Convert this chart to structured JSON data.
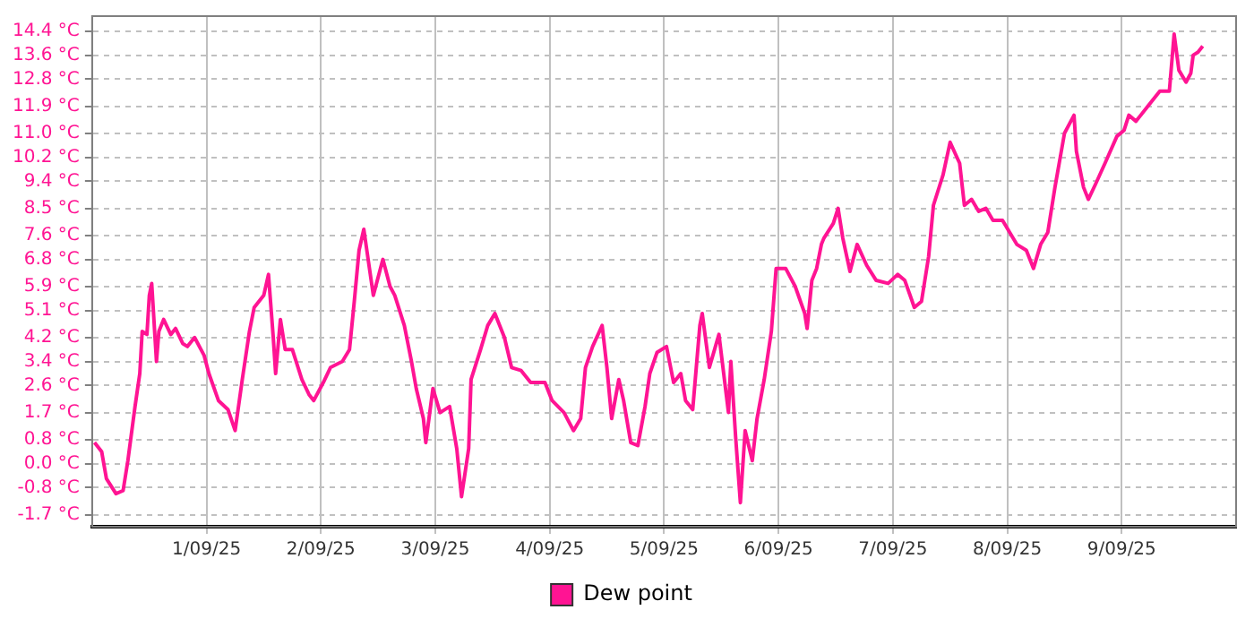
{
  "chart_data": {
    "type": "line",
    "legend": "bottom",
    "grid": true,
    "marker": "none",
    "line_style": "solid",
    "xlim": [
      "--08-31",
      "--09-10"
    ],
    "xticks": [
      {
        "value": "--09-01",
        "label": "1/09/25"
      },
      {
        "value": "--09-02",
        "label": "2/09/25"
      },
      {
        "value": "--09-03",
        "label": "3/09/25"
      },
      {
        "value": "--09-04",
        "label": "4/09/25"
      },
      {
        "value": "--09-05",
        "label": "5/09/25"
      },
      {
        "value": "--09-06",
        "label": "6/09/25"
      },
      {
        "value": "--09-07",
        "label": "7/09/25"
      },
      {
        "value": "--09-08",
        "label": "8/09/25"
      },
      {
        "value": "--09-09",
        "label": "9/09/25"
      }
    ],
    "ylim": [
      -2.1,
      14.9
    ],
    "yticks": [
      {
        "value": -1.7,
        "label": "-1.7 °C"
      },
      {
        "value": -0.8,
        "label": "-0.8 °C"
      },
      {
        "value": 0.0,
        "label": "0.0 °C"
      },
      {
        "value": 0.8,
        "label": "0.8 °C"
      },
      {
        "value": 1.7,
        "label": "1.7 °C"
      },
      {
        "value": 2.6,
        "label": "2.6 °C"
      },
      {
        "value": 3.4,
        "label": "3.4 °C"
      },
      {
        "value": 4.2,
        "label": "4.2 °C"
      },
      {
        "value": 5.1,
        "label": "5.1 °C"
      },
      {
        "value": 5.9,
        "label": "5.9 °C"
      },
      {
        "value": 6.8,
        "label": "6.8 °C"
      },
      {
        "value": 7.6,
        "label": "7.6 °C"
      },
      {
        "value": 8.5,
        "label": "8.5 °C"
      },
      {
        "value": 9.4,
        "label": "9.4 °C"
      },
      {
        "value": 10.2,
        "label": "10.2 °C"
      },
      {
        "value": 11.0,
        "label": "11.0 °C"
      },
      {
        "value": 11.9,
        "label": "11.9 °C"
      },
      {
        "value": 12.8,
        "label": "12.8 °C"
      },
      {
        "value": 13.6,
        "label": "13.6 °C"
      },
      {
        "value": 14.4,
        "label": "14.4 °C"
      }
    ],
    "x": [
      "--08-31T00:30",
      "--08-31T02:00",
      "--08-31T03:00",
      "--08-31T05:00",
      "--08-31T06:30",
      "--08-31T07:30",
      "--08-31T09:00",
      "--08-31T10:00",
      "--08-31T10:30",
      "--08-31T11:30",
      "--08-31T12:00",
      "--08-31T12:30",
      "--08-31T13:30",
      "--08-31T14:00",
      "--08-31T15:00",
      "--08-31T16:30",
      "--08-31T17:30",
      "--08-31T19:00",
      "--08-31T20:00",
      "--08-31T21:30",
      "--08-31T23:30",
      "--09-01T00:30",
      "--09-01T02:30",
      "--09-01T04:30",
      "--09-01T06:00",
      "--09-01T07:30",
      "--09-01T09:00",
      "--09-01T10:00",
      "--09-01T12:00",
      "--09-01T13:00",
      "--09-01T14:00",
      "--09-01T14:30",
      "--09-01T15:30",
      "--09-01T16:30",
      "--09-01T18:00",
      "--09-01T20:00",
      "--09-01T21:30",
      "--09-01T22:30",
      "--09-02T00:30",
      "--09-02T02:00",
      "--09-02T04:30",
      "--09-02T06:00",
      "--09-02T07:00",
      "--09-02T08:00",
      "--09-02T09:00",
      "--09-02T10:00",
      "--09-02T11:00",
      "--09-02T13:00",
      "--09-02T14:30",
      "--09-02T15:30",
      "--09-02T17:30",
      "--09-02T19:00",
      "--09-02T20:00",
      "--09-02T21:30",
      "--09-02T22:00",
      "--09-02T23:30",
      "--09-03T01:00",
      "--09-03T03:00",
      "--09-03T04:30",
      "--09-03T05:30",
      "--09-03T07:00",
      "--09-03T07:30",
      "--09-03T09:30",
      "--09-03T11:00",
      "--09-03T12:30",
      "--09-03T14:30",
      "--09-03T16:00",
      "--09-03T18:00",
      "--09-03T20:00",
      "--09-03T23:00",
      "--09-04T00:30",
      "--09-04T03:00",
      "--09-04T05:00",
      "--09-04T06:30",
      "--09-04T07:30",
      "--09-04T09:00",
      "--09-04T11:00",
      "--09-04T12:00",
      "--09-04T13:00",
      "--09-04T14:30",
      "--09-04T15:30",
      "--09-04T17:00",
      "--09-04T18:30",
      "--09-04T20:00",
      "--09-04T21:00",
      "--09-04T22:30",
      "--09-05T00:30",
      "--09-05T02:00",
      "--09-05T03:30",
      "--09-05T04:30",
      "--09-05T06:00",
      "--09-05T07:30",
      "--09-05T08:00",
      "--09-05T09:30",
      "--09-05T11:30",
      "--09-05T13:30",
      "--09-05T14:00",
      "--09-05T15:00",
      "--09-05T16:00",
      "--09-05T17:00",
      "--09-05T18:30",
      "--09-05T19:30",
      "--09-05T21:00",
      "--09-05T22:30",
      "--09-05T23:30",
      "--09-06T01:30",
      "--09-06T03:30",
      "--09-06T05:30",
      "--09-06T06:00",
      "--09-06T07:00",
      "--09-06T08:00",
      "--09-06T09:00",
      "--09-06T09:30",
      "--09-06T11:30",
      "--09-06T12:30",
      "--09-06T13:30",
      "--09-06T15:00",
      "--09-06T16:30",
      "--09-06T18:30",
      "--09-06T20:30",
      "--09-06T23:00",
      "--09-07T01:00",
      "--09-07T02:30",
      "--09-07T04:30",
      "--09-07T06:00",
      "--09-07T07:30",
      "--09-07T08:30",
      "--09-07T10:30",
      "--09-07T12:00",
      "--09-07T14:00",
      "--09-07T15:00",
      "--09-07T16:30",
      "--09-07T18:00",
      "--09-07T19:30",
      "--09-07T21:00",
      "--09-07T23:00",
      "--09-08T00:30",
      "--09-08T02:00",
      "--09-08T04:00",
      "--09-08T05:30",
      "--09-08T07:00",
      "--09-08T08:30",
      "--09-08T10:00",
      "--09-08T12:00",
      "--09-08T14:00",
      "--09-08T14:30",
      "--09-08T16:00",
      "--09-08T17:00",
      "--09-08T18:30",
      "--09-08T20:30",
      "--09-08T23:00",
      "--09-09T00:30",
      "--09-09T01:30",
      "--09-09T03:00",
      "--09-09T05:30",
      "--09-09T08:00",
      "--09-09T10:00",
      "--09-09T11:00",
      "--09-09T12:00",
      "--09-09T13:30",
      "--09-09T14:30",
      "--09-09T15:00",
      "--09-09T16:00",
      "--09-09T17:00"
    ],
    "series": [
      {
        "name": "Dew point",
        "color": "#ff1493",
        "values": [
          0.7,
          0.4,
          -0.5,
          -1.0,
          -0.9,
          0.1,
          1.9,
          3.0,
          4.4,
          4.3,
          5.6,
          6.0,
          3.4,
          4.4,
          4.8,
          4.3,
          4.5,
          4.0,
          3.9,
          4.2,
          3.6,
          3.0,
          2.1,
          1.8,
          1.1,
          2.8,
          4.4,
          5.2,
          5.6,
          6.3,
          4.2,
          3.0,
          4.8,
          3.8,
          3.8,
          2.8,
          2.3,
          2.1,
          2.7,
          3.2,
          3.4,
          3.8,
          5.4,
          7.1,
          7.8,
          6.7,
          5.6,
          6.8,
          5.9,
          5.6,
          4.6,
          3.4,
          2.5,
          1.5,
          0.7,
          2.5,
          1.7,
          1.9,
          0.5,
          -1.1,
          0.5,
          2.8,
          3.8,
          4.6,
          5.0,
          4.2,
          3.2,
          3.1,
          2.7,
          2.7,
          2.1,
          1.7,
          1.1,
          1.5,
          3.2,
          3.9,
          4.6,
          3.2,
          1.5,
          2.8,
          2.1,
          0.7,
          0.6,
          1.9,
          3.0,
          3.7,
          3.9,
          2.7,
          3.0,
          2.1,
          1.8,
          4.6,
          5.0,
          3.2,
          4.3,
          1.7,
          3.4,
          0.9,
          -1.3,
          1.1,
          0.1,
          1.5,
          2.8,
          4.4,
          6.5,
          6.5,
          5.9,
          5.0,
          4.5,
          6.1,
          6.5,
          7.3,
          7.5,
          8.0,
          8.5,
          7.5,
          6.4,
          7.3,
          6.6,
          6.1,
          6.0,
          6.3,
          6.1,
          5.2,
          5.4,
          6.9,
          8.6,
          9.6,
          10.7,
          10.0,
          8.6,
          8.8,
          8.4,
          8.5,
          8.1,
          8.1,
          7.7,
          7.3,
          7.1,
          6.5,
          7.3,
          7.7,
          9.2,
          11.0,
          11.6,
          10.4,
          9.2,
          8.8,
          9.3,
          10.0,
          10.9,
          11.1,
          11.6,
          11.4,
          11.9,
          12.4,
          12.4,
          14.3,
          13.1,
          12.7,
          13.0,
          13.6,
          13.7,
          13.9
        ]
      }
    ]
  }
}
